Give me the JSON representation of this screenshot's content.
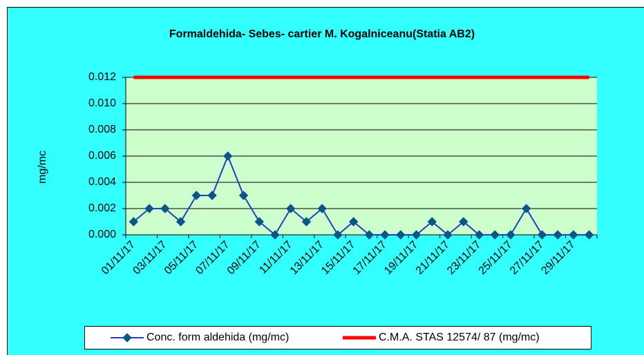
{
  "chart_data": {
    "type": "line",
    "title": "Formaldehida- Sebes- cartier M. Kogalniceanu(Statia AB2)",
    "y_label": "mg/mc",
    "categories": [
      "01/11/17",
      null,
      "03/11/17",
      null,
      "05/11/17",
      null,
      "07/11/17",
      null,
      "09/11/17",
      null,
      "11/11/17",
      null,
      "13/11/17",
      null,
      "15/11/17",
      null,
      "17/11/17",
      null,
      "19/11/17",
      null,
      "21/11/17",
      null,
      "23/11/17",
      null,
      "25/11/17",
      null,
      "27/11/17",
      null,
      "29/11/17",
      null
    ],
    "series": [
      {
        "name": "Conc. form aldehida  (mg/mc)",
        "color": "#1f3fbf",
        "marker_color": "#005f6f",
        "values": [
          0.001,
          0.002,
          0.002,
          0.001,
          0.003,
          0.003,
          0.006,
          0.003,
          0.001,
          0,
          0.002,
          0.001,
          0.002,
          0,
          0.001,
          0,
          0,
          0,
          0,
          0.001,
          0,
          0.001,
          0,
          0,
          0,
          0.002,
          0,
          0,
          0,
          0
        ]
      },
      {
        "name": "C.M.A. STAS 12574/ 87 (mg/mc)",
        "color": "#ff0000",
        "values": [
          0.012,
          0.012,
          0.012,
          0.012,
          0.012,
          0.012,
          0.012,
          0.012,
          0.012,
          0.012,
          0.012,
          0.012,
          0.012,
          0.012,
          0.012,
          0.012,
          0.012,
          0.012,
          0.012,
          0.012,
          0.012,
          0.012,
          0.012,
          0.012,
          0.012,
          0.012,
          0.012,
          0.012,
          0.012,
          0.012
        ]
      }
    ],
    "ylim": [
      0,
      0.012
    ],
    "yticks": [
      {
        "value": 0,
        "label": "0.000"
      },
      {
        "value": 0.002,
        "label": "0.002"
      },
      {
        "value": 0.004,
        "label": "0.004"
      },
      {
        "value": 0.006,
        "label": "0.006"
      },
      {
        "value": 0.008,
        "label": "0.008"
      },
      {
        "value": 0.01,
        "label": "0.010"
      },
      {
        "value": 0.012,
        "label": "0.012"
      }
    ],
    "grid": true,
    "legend": "bottom"
  }
}
